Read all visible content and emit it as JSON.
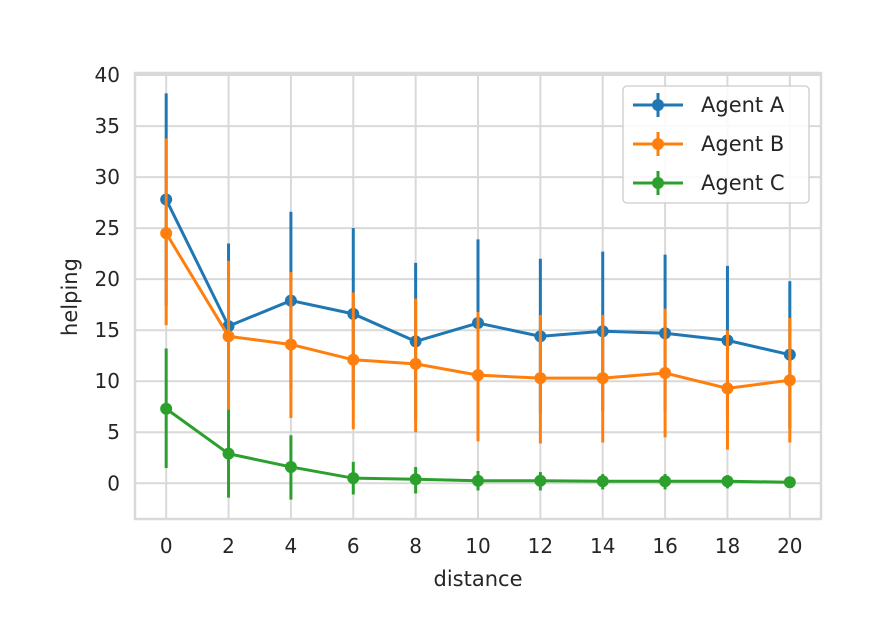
{
  "chart_data": {
    "type": "line",
    "title": "",
    "xlabel": "distance",
    "ylabel": "helping",
    "xlim": [
      -1,
      21
    ],
    "ylim": [
      -3.5,
      40.2
    ],
    "xticks": [
      0,
      2,
      4,
      6,
      8,
      10,
      12,
      14,
      16,
      18,
      20
    ],
    "yticks": [
      0,
      5,
      10,
      15,
      20,
      25,
      30,
      35,
      40
    ],
    "grid": true,
    "legend_position": "upper right",
    "x": [
      0,
      2,
      4,
      6,
      8,
      10,
      12,
      14,
      16,
      18,
      20
    ],
    "series": [
      {
        "name": "Agent A",
        "color": "#1f77b4",
        "values": [
          27.8,
          15.4,
          17.9,
          16.6,
          13.9,
          15.7,
          14.4,
          14.9,
          14.7,
          14.0,
          12.6
        ],
        "err_upper": [
          38.2,
          23.5,
          26.6,
          25.0,
          21.6,
          23.9,
          22.0,
          22.7,
          22.4,
          21.3,
          19.8
        ],
        "err_lower": [
          17.4,
          7.3,
          9.2,
          8.2,
          6.2,
          7.5,
          6.8,
          7.1,
          7.0,
          6.7,
          5.4
        ]
      },
      {
        "name": "Agent B",
        "color": "#ff7f0e",
        "values": [
          24.5,
          14.4,
          13.6,
          12.1,
          11.7,
          10.6,
          10.3,
          10.3,
          10.8,
          9.3,
          10.1
        ],
        "err_upper": [
          33.8,
          21.8,
          20.7,
          18.7,
          18.1,
          16.8,
          16.5,
          16.5,
          17.1,
          15.0,
          16.2
        ],
        "err_lower": [
          15.5,
          7.1,
          6.4,
          5.3,
          5.0,
          4.1,
          3.9,
          4.0,
          4.5,
          3.3,
          4.0
        ]
      },
      {
        "name": "Agent C",
        "color": "#2ca02c",
        "values": [
          7.3,
          2.9,
          1.6,
          0.5,
          0.4,
          0.25,
          0.25,
          0.2,
          0.2,
          0.2,
          0.1
        ],
        "err_upper": [
          13.2,
          7.2,
          4.7,
          2.1,
          1.6,
          1.2,
          1.1,
          0.9,
          0.9,
          0.8,
          0.6
        ],
        "err_lower": [
          1.5,
          -1.4,
          -1.6,
          -1.1,
          -1.0,
          -0.7,
          -0.7,
          -0.6,
          -0.6,
          -0.5,
          -0.4
        ]
      }
    ]
  },
  "legend": {
    "items": [
      {
        "label": "Agent A",
        "color": "#1f77b4"
      },
      {
        "label": "Agent B",
        "color": "#ff7f0e"
      },
      {
        "label": "Agent C",
        "color": "#2ca02c"
      }
    ]
  },
  "style": {
    "grid_color": "#d9d9d9",
    "spine_color": "#d9d9d9",
    "text_color": "#262626",
    "background": "#ffffff"
  }
}
